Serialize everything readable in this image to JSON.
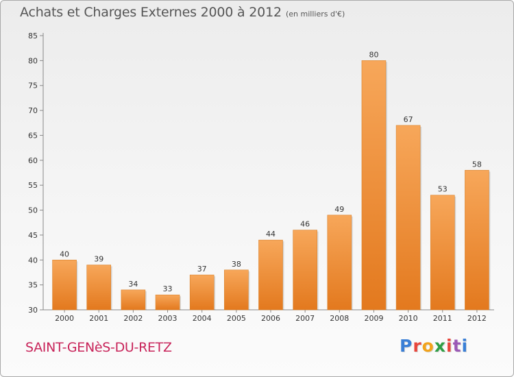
{
  "header": {
    "title": "Achats et Charges Externes 2000 à 2012",
    "unit": "(en milliers d'€)"
  },
  "footer": {
    "commune": "SAINT-GENèS-DU-RETZ",
    "logo_letters": [
      "P",
      "r",
      "o",
      "x",
      "i",
      "t",
      "i"
    ]
  },
  "colors": {
    "bar_light": "#f7a75a",
    "bar_dark": "#e3791e",
    "commune_text": "#c8245a",
    "logo": [
      "#3a7fd6",
      "#e8463c",
      "#f2a31b",
      "#2f9e44",
      "#e8463c",
      "#9b59b6",
      "#3a7fd6"
    ]
  },
  "chart_data": {
    "type": "bar",
    "title": "Achats et Charges Externes 2000 à 2012",
    "subtitle": "(en milliers d'€)",
    "xlabel": "",
    "ylabel": "",
    "categories": [
      "2000",
      "2001",
      "2002",
      "2003",
      "2004",
      "2005",
      "2006",
      "2007",
      "2008",
      "2009",
      "2010",
      "2011",
      "2012"
    ],
    "values": [
      40,
      39,
      34,
      33,
      37,
      38,
      44,
      46,
      49,
      80,
      67,
      53,
      58
    ],
    "ylim": [
      30,
      85
    ],
    "yticks": [
      30,
      35,
      40,
      45,
      50,
      55,
      60,
      65,
      70,
      75,
      80,
      85
    ],
    "grid": false,
    "legend": "none"
  }
}
